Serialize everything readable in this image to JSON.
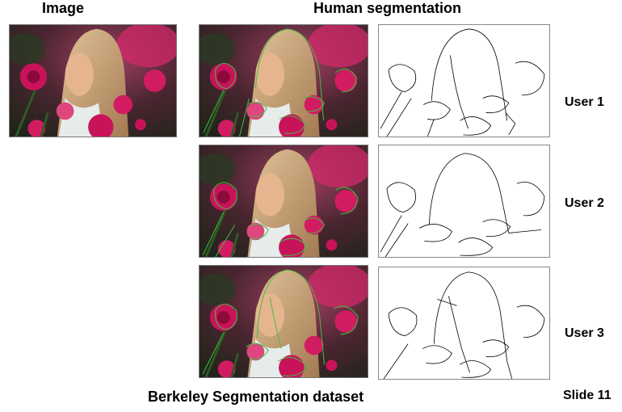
{
  "headers": {
    "image": "Image",
    "human_segmentation": "Human segmentation"
  },
  "rows": [
    {
      "user_label": "User 1"
    },
    {
      "user_label": "User 2"
    },
    {
      "user_label": "User 3"
    }
  ],
  "footer": {
    "caption": "Berkeley Segmentation dataset",
    "slide": "Slide 11"
  },
  "colors": {
    "overlay_line": "#3fbf3f",
    "rose": "#c8135a",
    "hair": "#c9a27a"
  }
}
